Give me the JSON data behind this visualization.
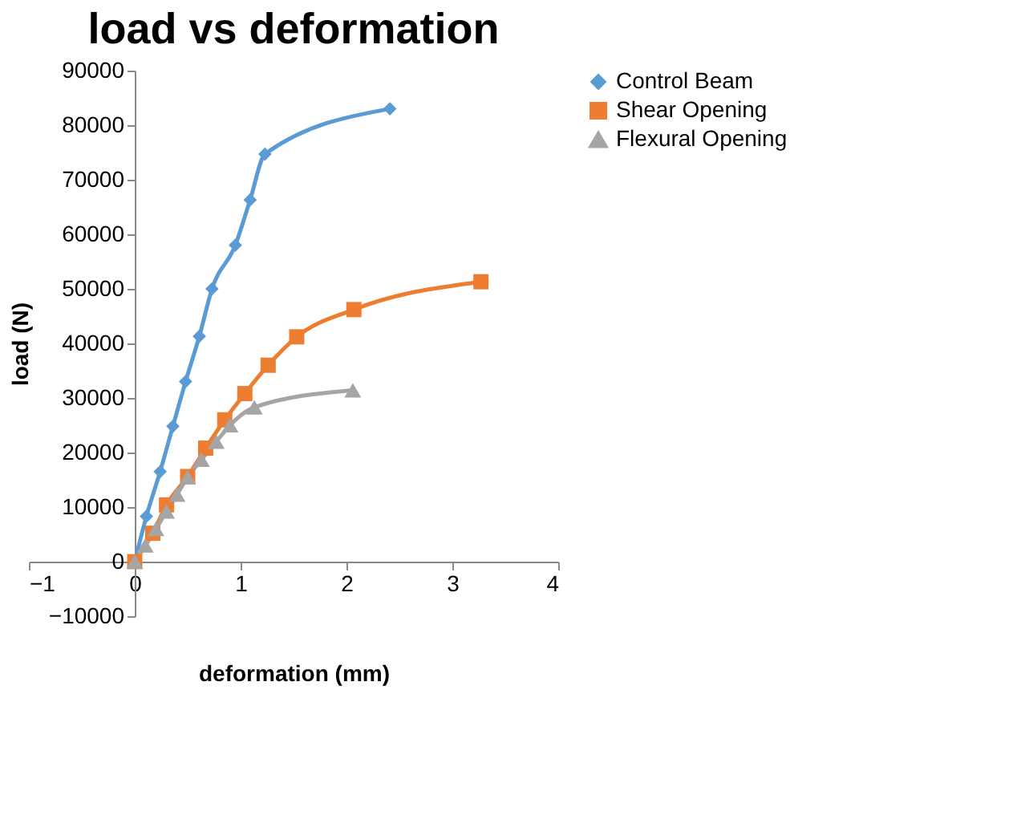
{
  "chart_data": {
    "type": "line",
    "title": "load vs deformation",
    "xlabel": "deformation (mm)",
    "ylabel": "load (N)",
    "xlim": [
      -1,
      4
    ],
    "xticks": [
      -1,
      0,
      1,
      2,
      3,
      4
    ],
    "ylim": [
      -10000,
      90000
    ],
    "yticks": [
      -10000,
      0,
      10000,
      20000,
      30000,
      40000,
      50000,
      60000,
      70000,
      80000,
      90000
    ],
    "grid": false,
    "legend": "right",
    "series": [
      {
        "name": "Control Beam",
        "color": "#5b9bd5",
        "marker": "diamond",
        "x": [
          0,
          0.11,
          0.24,
          0.36,
          0.48,
          0.61,
          0.73,
          0.95,
          1.09,
          1.23,
          2.41
        ],
        "values": [
          0,
          8300,
          16500,
          24800,
          33000,
          41300,
          50000,
          58000,
          66300,
          74700,
          83000
        ]
      },
      {
        "name": "Shear Opening",
        "color": "#ed7d31",
        "marker": "square",
        "x": [
          0,
          0.17,
          0.3,
          0.5,
          0.67,
          0.85,
          1.04,
          1.26,
          1.53,
          2.07,
          3.27
        ],
        "values": [
          0,
          5200,
          10400,
          15600,
          20800,
          26000,
          30800,
          36000,
          41200,
          46200,
          51300
        ]
      },
      {
        "name": "Flexural Opening",
        "color": "#a5a5a5",
        "marker": "triangle",
        "x": [
          0,
          0.1,
          0.2,
          0.3,
          0.4,
          0.5,
          0.63,
          0.77,
          0.9,
          1.13,
          2.06
        ],
        "values": [
          0,
          3000,
          6000,
          9200,
          12300,
          15500,
          18700,
          22000,
          25000,
          28300,
          31400
        ]
      }
    ]
  }
}
